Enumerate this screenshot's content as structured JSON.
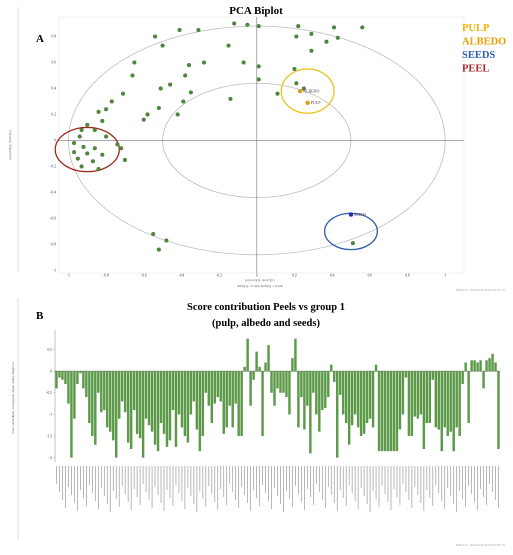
{
  "figure": {
    "panel_a_letter": "A",
    "panel_b_letter": "B",
    "footer_a": "SIMCA 15 - 2019-04-29 10:12:34 (UTC+1)",
    "footer_b": "SIMCA 15 - 2019-04-29 10:13:05 (UTC+1)"
  },
  "chart_data": [
    {
      "type": "scatter",
      "title": "PCA Biplot",
      "xlabel": "pc(corr)[1], t(corr)[1]",
      "ylabel": "pc(corr)[2], t(corr)[2]",
      "caption": "R2X[1] = 0.422, R2X[2] = 0.226",
      "xlim": [
        -1.05,
        1.1
      ],
      "ylim": [
        -1.02,
        0.95
      ],
      "xticks": [
        -1,
        -0.8,
        -0.6,
        -0.4,
        -0.2,
        0,
        0.2,
        0.4,
        0.6,
        0.8,
        1
      ],
      "yticks": [
        -1,
        -0.8,
        -0.6,
        -0.4,
        -0.2,
        0,
        0.2,
        0.4,
        0.6,
        0.8
      ],
      "grid": false,
      "ellipse_rx": [
        1.0,
        0.5
      ],
      "ellipse_ry": [
        0.88,
        0.44
      ],
      "legend": {
        "placement": "top-right",
        "entries": [
          {
            "name": "PULP",
            "color": "#f2b705"
          },
          {
            "name": "ALBEDO",
            "color": "#e6a100"
          },
          {
            "name": "SEEDS",
            "color": "#2d5fb3"
          },
          {
            "name": "PEEL",
            "color": "#a8262a"
          }
        ]
      },
      "highlight_circles": [
        {
          "group": "PULP",
          "cx": 0.27,
          "cy": 0.38,
          "rx": 0.14,
          "ry": 0.17,
          "color": "#e9c41b"
        },
        {
          "group": "PEEL",
          "cx": -0.9,
          "cy": -0.07,
          "rx": 0.17,
          "ry": 0.17,
          "color": "#9e2a20"
        },
        {
          "group": "SEEDS",
          "cx": 0.5,
          "cy": -0.7,
          "rx": 0.14,
          "ry": 0.14,
          "color": "#2e5ea8"
        }
      ],
      "samples": [
        {
          "name": "PULP",
          "x": 0.27,
          "y": 0.29,
          "color": "#d8a017"
        },
        {
          "name": "ALBEDO",
          "x": 0.23,
          "y": 0.38,
          "color": "#d8a017"
        },
        {
          "name": "SEEDS",
          "x": 0.5,
          "y": -0.57,
          "color": "#1f2aa8"
        }
      ],
      "variables": [
        {
          "name": "",
          "x": -0.12,
          "y": 0.9
        },
        {
          "name": "",
          "x": -0.05,
          "y": 0.89
        },
        {
          "name": "",
          "x": 0.01,
          "y": 0.88
        },
        {
          "name": "",
          "x": 0.22,
          "y": 0.88
        },
        {
          "name": "",
          "x": 0.41,
          "y": 0.87
        },
        {
          "name": "",
          "x": 0.56,
          "y": 0.87
        },
        {
          "name": "",
          "x": -0.41,
          "y": 0.85
        },
        {
          "name": "",
          "x": -0.31,
          "y": 0.85
        },
        {
          "name": "",
          "x": 0.29,
          "y": 0.82
        },
        {
          "name": "",
          "x": -0.54,
          "y": 0.8
        },
        {
          "name": "",
          "x": 0.21,
          "y": 0.8
        },
        {
          "name": "",
          "x": 0.43,
          "y": 0.79
        },
        {
          "name": "",
          "x": 0.37,
          "y": 0.76
        },
        {
          "name": "",
          "x": -0.5,
          "y": 0.73
        },
        {
          "name": "",
          "x": -0.15,
          "y": 0.73
        },
        {
          "name": "",
          "x": 0.29,
          "y": 0.69
        },
        {
          "name": "",
          "x": -0.65,
          "y": 0.6
        },
        {
          "name": "",
          "x": -0.28,
          "y": 0.6
        },
        {
          "name": "",
          "x": -0.07,
          "y": 0.6
        },
        {
          "name": "",
          "x": -0.36,
          "y": 0.58
        },
        {
          "name": "",
          "x": 0.01,
          "y": 0.57
        },
        {
          "name": "",
          "x": 0.2,
          "y": 0.55
        },
        {
          "name": "",
          "x": -0.66,
          "y": 0.5
        },
        {
          "name": "",
          "x": -0.38,
          "y": 0.5
        },
        {
          "name": "",
          "x": 0.01,
          "y": 0.47
        },
        {
          "name": "",
          "x": 0.21,
          "y": 0.44
        },
        {
          "name": "",
          "x": -0.46,
          "y": 0.43
        },
        {
          "name": "",
          "x": -0.51,
          "y": 0.4
        },
        {
          "name": "",
          "x": 0.25,
          "y": 0.4
        },
        {
          "name": "",
          "x": -0.71,
          "y": 0.36
        },
        {
          "name": "",
          "x": -0.35,
          "y": 0.37
        },
        {
          "name": "",
          "x": 0.11,
          "y": 0.36
        },
        {
          "name": "",
          "x": -0.77,
          "y": 0.3
        },
        {
          "name": "",
          "x": -0.39,
          "y": 0.3
        },
        {
          "name": "",
          "x": -0.14,
          "y": 0.32
        },
        {
          "name": "",
          "x": -0.52,
          "y": 0.25
        },
        {
          "name": "",
          "x": -0.84,
          "y": 0.22
        },
        {
          "name": "",
          "x": -0.8,
          "y": 0.24
        },
        {
          "name": "",
          "x": -0.58,
          "y": 0.2
        },
        {
          "name": "",
          "x": -0.42,
          "y": 0.2
        },
        {
          "name": "",
          "x": -0.6,
          "y": 0.16
        },
        {
          "name": "",
          "x": -0.82,
          "y": 0.15
        },
        {
          "name": "",
          "x": -0.9,
          "y": 0.12
        },
        {
          "name": "",
          "x": -0.93,
          "y": 0.08
        },
        {
          "name": "",
          "x": -0.86,
          "y": 0.08
        },
        {
          "name": "",
          "x": -0.94,
          "y": 0.03
        },
        {
          "name": "",
          "x": -0.8,
          "y": 0.03
        },
        {
          "name": "",
          "x": -0.97,
          "y": -0.02
        },
        {
          "name": "",
          "x": -0.92,
          "y": -0.05
        },
        {
          "name": "",
          "x": -0.86,
          "y": -0.06
        },
        {
          "name": "",
          "x": -0.97,
          "y": -0.09
        },
        {
          "name": "",
          "x": -0.9,
          "y": -0.1
        },
        {
          "name": "",
          "x": -0.82,
          "y": -0.11
        },
        {
          "name": "",
          "x": -0.95,
          "y": -0.14
        },
        {
          "name": "",
          "x": -0.87,
          "y": -0.16
        },
        {
          "name": "",
          "x": -0.93,
          "y": -0.2
        },
        {
          "name": "",
          "x": -0.84,
          "y": -0.22
        },
        {
          "name": "",
          "x": -0.72,
          "y": -0.06
        },
        {
          "name": "",
          "x": -0.7,
          "y": -0.15
        },
        {
          "name": "",
          "x": -0.74,
          "y": -0.03
        },
        {
          "name": "",
          "x": -0.55,
          "y": -0.72
        },
        {
          "name": "",
          "x": -0.48,
          "y": -0.77
        },
        {
          "name": "",
          "x": -0.52,
          "y": -0.84
        },
        {
          "name": "",
          "x": 0.51,
          "y": -0.79
        }
      ]
    },
    {
      "type": "bar",
      "title": "Score contribution Peels vs group 1",
      "subtitle": "(pulp, albedo and seeds)",
      "ylabel": "Score Contrib(Peels - Average(pulp, albedo, seeds)), Weight=p1",
      "ylim": [
        -2.1,
        0.95
      ],
      "yticks": [
        -2,
        -1.5,
        -1,
        -0.5,
        0,
        0.5
      ],
      "color": "#5c9a4a",
      "values": [
        -0.4,
        -0.15,
        -0.2,
        -0.3,
        -0.75,
        -2.0,
        -1.1,
        -0.3,
        -0.05,
        -0.4,
        -0.6,
        -1.2,
        -1.5,
        -1.7,
        -0.5,
        -0.95,
        -0.9,
        -1.3,
        -1.4,
        -1.6,
        -2.0,
        -1.1,
        -0.7,
        -0.95,
        -1.65,
        -1.8,
        -0.9,
        -1.45,
        -1.55,
        -2.0,
        -1.1,
        -1.25,
        -1.4,
        -1.7,
        -1.85,
        -1.2,
        -1.45,
        -1.75,
        -1.6,
        -0.9,
        -1.75,
        -1.0,
        -1.3,
        -1.5,
        -1.65,
        -1.0,
        -0.7,
        -1.35,
        -1.85,
        -1.5,
        -0.5,
        -0.8,
        -1.2,
        -0.75,
        -0.6,
        -0.7,
        -1.45,
        -1.3,
        -0.8,
        -1.3,
        -0.75,
        -1.5,
        -1.5,
        0.1,
        0.75,
        -0.8,
        -0.2,
        0.45,
        0.1,
        -1.5,
        0.2,
        0.6,
        -0.5,
        -0.8,
        -0.4,
        -0.5,
        -0.5,
        -0.6,
        -1.0,
        0.3,
        0.75,
        -1.3,
        -0.6,
        -1.35,
        -0.8,
        -1.9,
        -0.5,
        -1.0,
        -1.4,
        -0.9,
        -0.85,
        -0.6,
        0.15,
        -0.25,
        -2.0,
        -0.55,
        -1.0,
        -1.2,
        -1.7,
        -1.25,
        -1.0,
        -1.3,
        -1.5,
        -1.45,
        -1.2,
        -1.1,
        -1.3,
        0.15,
        -1.85,
        -1.85,
        -1.85,
        -1.85,
        -1.85,
        -1.85,
        -1.85,
        -1.35,
        -1.0,
        -0.15,
        -1.5,
        -1.5,
        -1.05,
        -1.1,
        -1.0,
        -1.8,
        -1.2,
        -1.2,
        -0.2,
        -1.3,
        -1.35,
        -1.85,
        -1.3,
        -1.5,
        -1.4,
        -1.85,
        -1.3,
        -1.5,
        -0.3,
        0.2,
        -1.2,
        0.25,
        0.25,
        0.2,
        0.25,
        -0.4,
        0.25,
        0.3,
        0.4,
        0.2,
        -1.8
      ]
    }
  ]
}
